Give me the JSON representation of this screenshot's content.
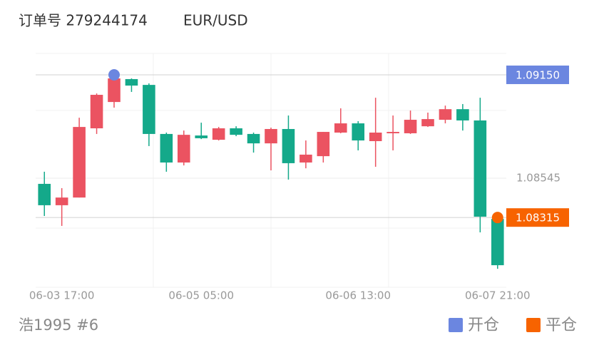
{
  "chart_data": {
    "type": "candlestick",
    "title": "订单号 279244174",
    "subtitle": "EUR/USD",
    "footer": "浩1995 #6",
    "categories": [
      null,
      "06-03 17:00",
      null,
      null,
      null,
      null,
      null,
      null,
      null,
      "06-05 05:00",
      null,
      null,
      null,
      null,
      null,
      null,
      null,
      null,
      "06-06 13:00",
      null,
      null,
      null,
      null,
      null,
      null,
      null,
      "06-07 21:00"
    ],
    "open": [
      1.08512,
      1.08387,
      1.08432,
      1.08837,
      1.08991,
      1.09125,
      1.09091,
      1.08804,
      1.08637,
      1.08795,
      1.0877,
      1.08837,
      1.08804,
      1.08749,
      1.08833,
      1.08637,
      1.08674,
      1.08812,
      1.08866,
      1.08762,
      1.08808,
      1.08808,
      1.08849,
      1.08887,
      1.08949,
      1.08883,
      1.08307
    ],
    "high": [
      1.08583,
      1.08487,
      1.08899,
      1.09041,
      1.09154,
      1.09129,
      1.091,
      1.08812,
      1.08824,
      1.0887,
      1.08845,
      1.08849,
      1.08812,
      1.08841,
      1.08912,
      1.08766,
      1.08816,
      1.08954,
      1.08879,
      1.09016,
      1.08912,
      1.08941,
      1.08929,
      1.0897,
      1.08979,
      1.09016,
      1.08316
    ],
    "low": [
      1.08324,
      1.08266,
      1.08432,
      1.08804,
      1.08958,
      1.0905,
      1.08733,
      1.08583,
      1.0862,
      1.08774,
      1.08766,
      1.08791,
      1.08695,
      1.08591,
      1.08537,
      1.08603,
      1.08637,
      1.08808,
      1.08708,
      1.08612,
      1.08708,
      1.08804,
      1.08845,
      1.08866,
      1.08824,
      1.08228,
      1.08015
    ],
    "close": [
      1.08387,
      1.08432,
      1.08845,
      1.09033,
      1.09129,
      1.09087,
      1.08804,
      1.08637,
      1.08799,
      1.08779,
      1.08837,
      1.08799,
      1.08749,
      1.08833,
      1.08633,
      1.08683,
      1.08816,
      1.08866,
      1.08766,
      1.08812,
      1.08816,
      1.08887,
      1.08891,
      1.08949,
      1.08883,
      1.0832,
      1.08036
    ],
    "up_color": "#eb5361",
    "down_color": "#14a98a",
    "ylim": [
      1.07907,
      1.09275
    ],
    "yticks": [
      1.08545
    ],
    "open_marker": {
      "name": "开仓",
      "value": 1.0915,
      "label": "1.09150",
      "color": "#6b86e0"
    },
    "close_marker": {
      "name": "平仓",
      "value": 1.08315,
      "label": "1.08315",
      "color": "#f76300"
    }
  }
}
